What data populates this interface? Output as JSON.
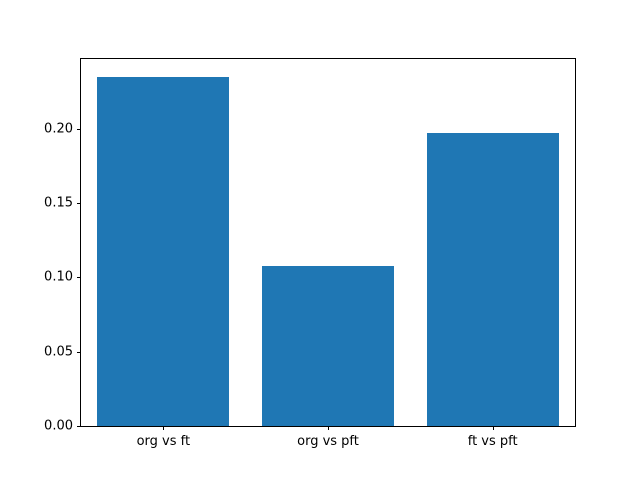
{
  "chart_data": {
    "type": "bar",
    "title": "",
    "xlabel": "",
    "ylabel": "",
    "categories": [
      "org vs ft",
      "org vs pft",
      "ft vs pft"
    ],
    "values": [
      0.235,
      0.108,
      0.197
    ],
    "ylim": [
      0,
      0.247
    ],
    "yticks": [
      0.0,
      0.05,
      0.1,
      0.15,
      0.2
    ],
    "ytick_format_decimals": 2,
    "bar_width_fraction": 0.8,
    "grid": false,
    "legend": null,
    "colors": {
      "bar": "#1f77b4",
      "background": "#ffffff",
      "spine": "#000000",
      "text": "#000000"
    }
  }
}
